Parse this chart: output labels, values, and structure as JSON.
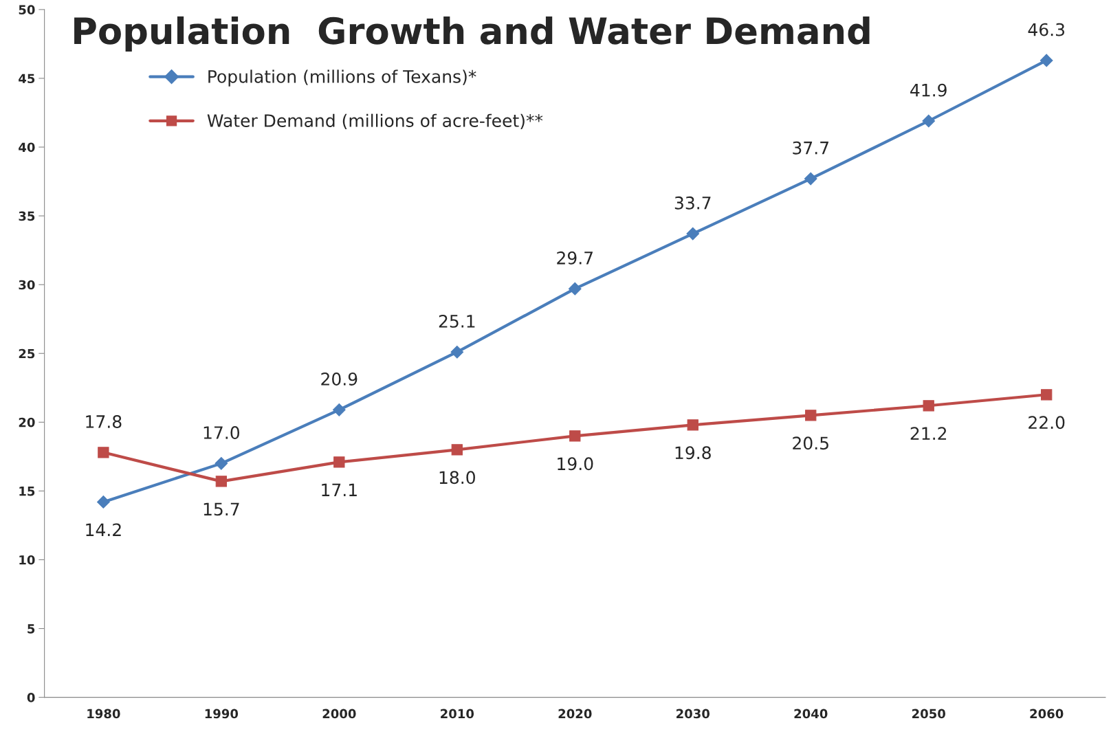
{
  "chart_data": {
    "type": "line",
    "title": "Population  Growth and Water Demand",
    "categories": [
      "1980",
      "1990",
      "2000",
      "2010",
      "2020",
      "2030",
      "2040",
      "2050",
      "2060"
    ],
    "series": [
      {
        "name": "Population (millions of Texans)*",
        "color": "#4a7ebb",
        "marker": "diamond",
        "values": [
          14.2,
          17.0,
          20.9,
          25.1,
          29.7,
          33.7,
          37.7,
          41.9,
          46.3
        ],
        "value_labels": [
          "14.2",
          "17.0",
          "20.9",
          "25.1",
          "29.7",
          "33.7",
          "37.7",
          "41.9",
          "46.3"
        ]
      },
      {
        "name": "Water Demand (millions of acre-feet)**",
        "color": "#be4b48",
        "marker": "square",
        "values": [
          17.8,
          15.7,
          17.1,
          18.0,
          19.0,
          19.8,
          20.5,
          21.2,
          22.0
        ],
        "value_labels": [
          "17.8",
          "15.7",
          "17.1",
          "18.0",
          "19.0",
          "19.8",
          "20.5",
          "21.2",
          "22.0"
        ]
      }
    ],
    "ylim": [
      0,
      50
    ],
    "yticks": [
      0,
      5,
      10,
      15,
      20,
      25,
      30,
      35,
      40,
      45,
      50
    ],
    "legend": "top left",
    "grid": false,
    "line_style": "solid"
  }
}
